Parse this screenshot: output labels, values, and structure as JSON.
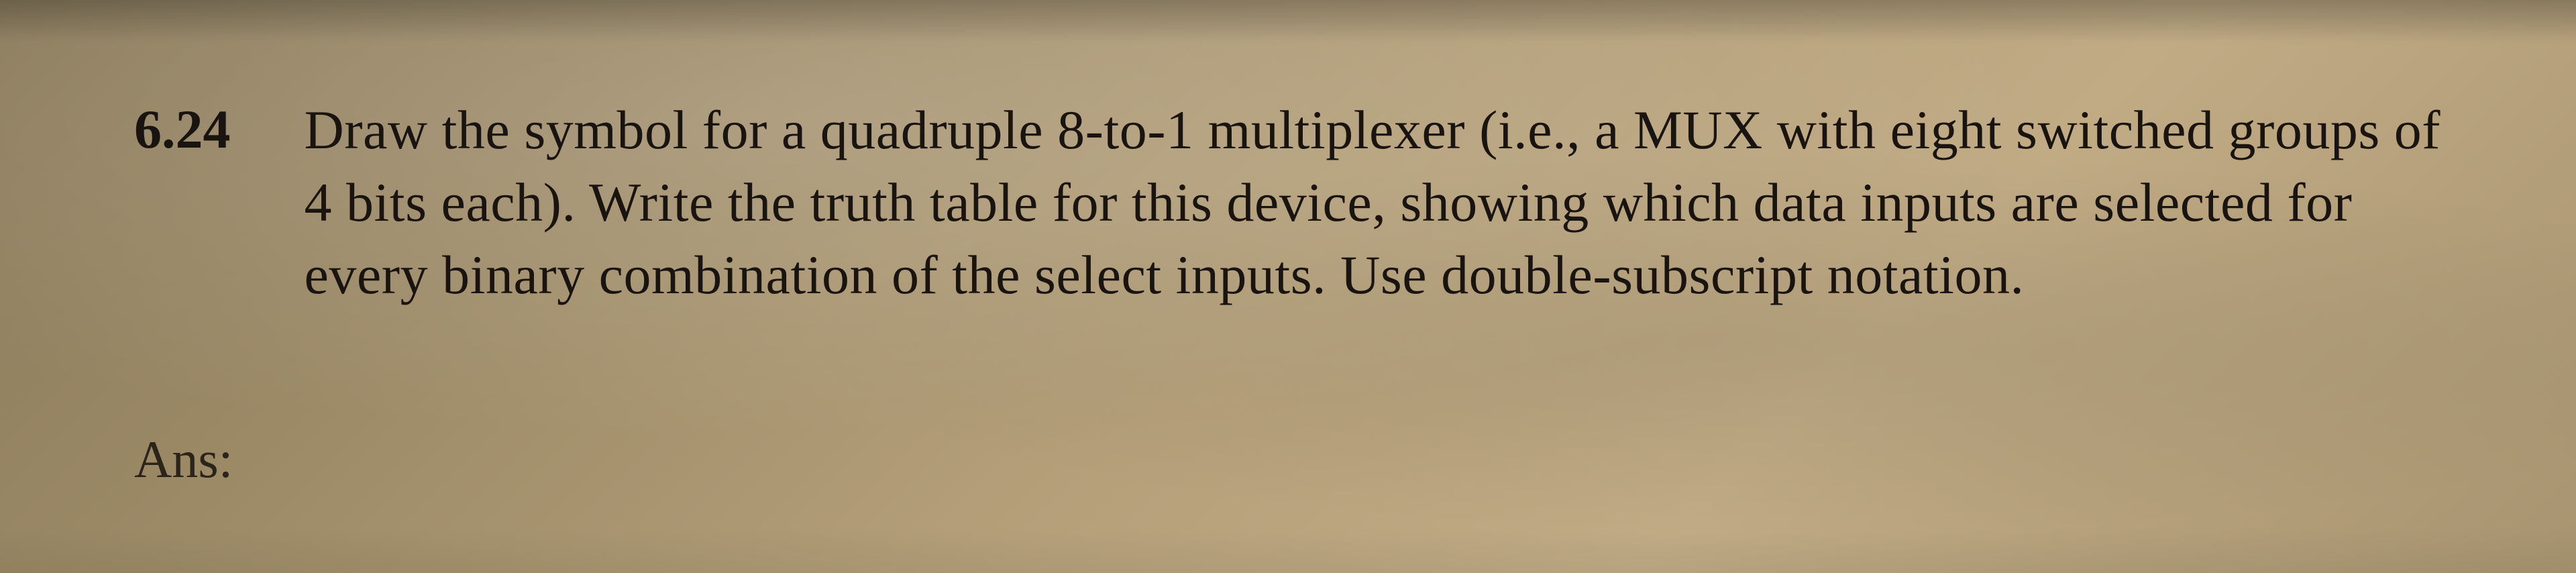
{
  "question": {
    "number": "6.24",
    "text": "Draw the symbol for a quadruple 8-to-1 multiplexer (i.e., a MUX with eight switched groups of 4 bits each). Write the truth table for this device, showing which data inputs are selected for every binary combination of the select inputs. Use double-subscript notation."
  },
  "answer": {
    "label": "Ans:"
  },
  "styling": {
    "background_color": "#a89470",
    "text_color": "#1a1410",
    "font_family": "Georgia, Times New Roman, serif",
    "question_number_fontsize": 82,
    "question_text_fontsize": 82,
    "answer_label_fontsize": 78,
    "line_height": 1.32
  }
}
